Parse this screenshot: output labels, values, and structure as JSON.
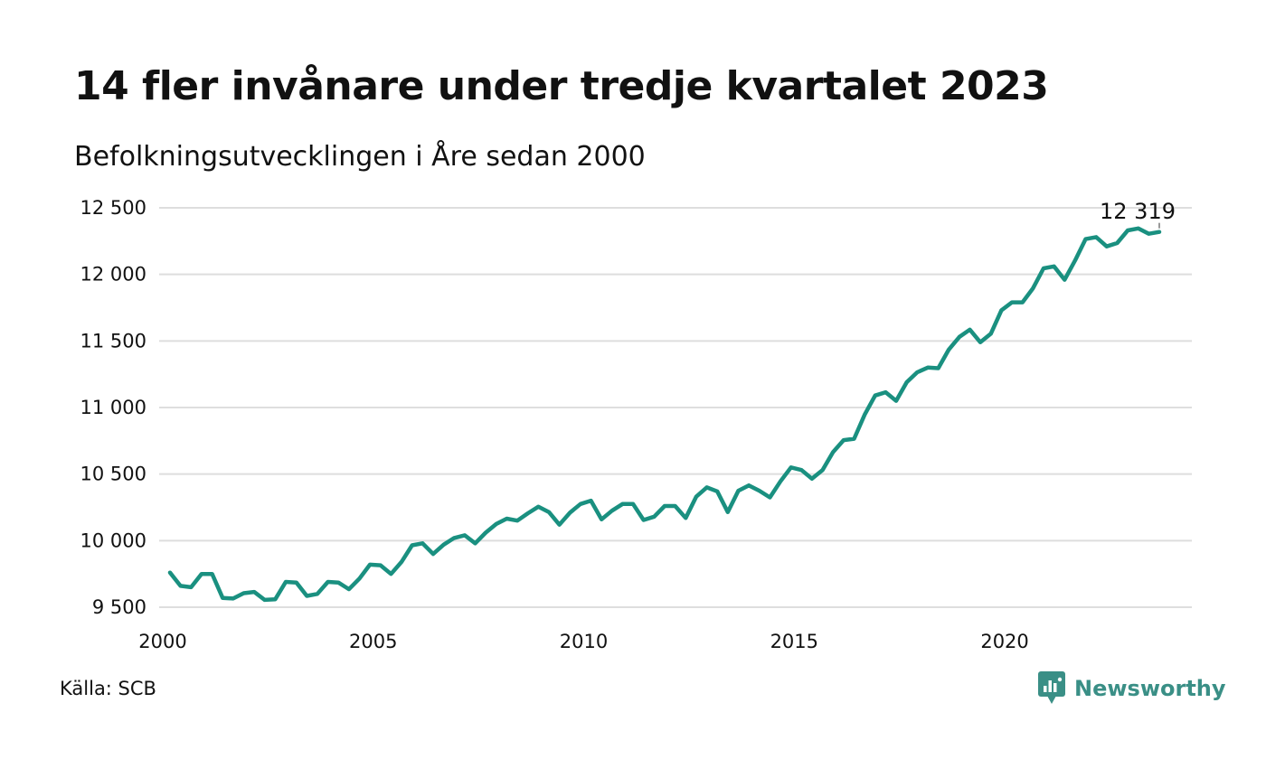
{
  "header": {
    "title": "14 fler invånare under tredje kvartalet 2023",
    "subtitle": "Befolkningsutvecklingen i Åre sedan 2000"
  },
  "footer": {
    "source": "Källa: SCB",
    "brand": "Newsworthy",
    "brand_icon": "newsworthy-chart-bubble-icon",
    "brand_color": "#3a8f86"
  },
  "chart_data": {
    "type": "line",
    "title": "14 fler invånare under tredje kvartalet 2023",
    "subtitle": "Befolkningsutvecklingen i Åre sedan 2000",
    "xlabel": "",
    "ylabel": "",
    "xlim": [
      2000,
      2024.25
    ],
    "ylim": [
      9470,
      12500
    ],
    "x_ticks": [
      2000,
      2005,
      2010,
      2015,
      2020
    ],
    "x_tick_labels": [
      "2000",
      "2005",
      "2010",
      "2015",
      "2020"
    ],
    "y_ticks": [
      9500,
      10000,
      10500,
      11000,
      11500,
      12000,
      12500
    ],
    "y_tick_labels": [
      "9 500",
      "10 000",
      "10 500",
      "11 000",
      "11 500",
      "12 000",
      "12 500"
    ],
    "grid": "horizontal",
    "line_color": "#1a9080",
    "grid_color": "#dedede",
    "end_label": "12 319",
    "series": [
      {
        "x_start": 2000.0,
        "x_step": 0.25,
        "values": [
          9760,
          9660,
          9650,
          9750,
          9750,
          9570,
          9565,
          9605,
          9615,
          9555,
          9560,
          9690,
          9685,
          9585,
          9600,
          9690,
          9685,
          9635,
          9715,
          9820,
          9815,
          9750,
          9840,
          9965,
          9980,
          9900,
          9970,
          10020,
          10040,
          9980,
          10060,
          10125,
          10165,
          10150,
          10205,
          10255,
          10215,
          10120,
          10210,
          10275,
          10300,
          10160,
          10225,
          10275,
          10275,
          10155,
          10180,
          10260,
          10260,
          10170,
          10330,
          10400,
          10370,
          10215,
          10375,
          10415,
          10375,
          10325,
          10445,
          10550,
          10530,
          10465,
          10530,
          10665,
          10755,
          10765,
          10945,
          11090,
          11115,
          11050,
          11190,
          11265,
          11300,
          11295,
          11435,
          11530,
          11585,
          11490,
          11555,
          11730,
          11790,
          11790,
          11895,
          12045,
          12060,
          11960,
          12105,
          12265,
          12280,
          12210,
          12235,
          12330,
          12345,
          12305,
          12319
        ]
      }
    ]
  }
}
